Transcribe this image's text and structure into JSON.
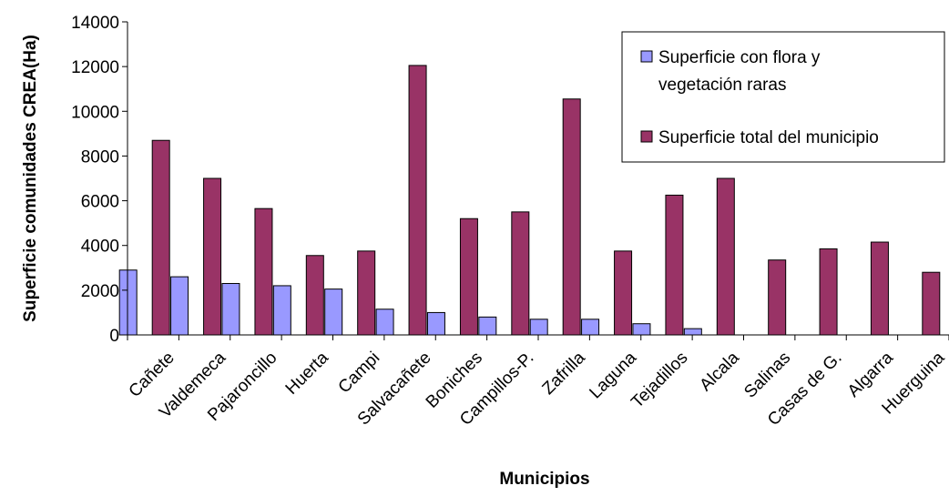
{
  "chart_data": {
    "type": "bar",
    "categories": [
      "Cañete",
      "Valdemeca",
      "Pajaroncillo",
      "Huerta",
      "Campi",
      "Salvacañete",
      "Boniches",
      "Campillos-P.",
      "Zafrilla",
      "Laguna",
      "Tejadillos",
      "Alcala",
      "Salinas",
      "Casas de G.",
      "Algarra",
      "Huerguina"
    ],
    "series": [
      {
        "name": "Superficie con flora y vegetación raras",
        "color": "#9999ff",
        "values": [
          2900,
          2600,
          2300,
          2200,
          2050,
          1150,
          1000,
          800,
          700,
          700,
          500,
          280,
          0,
          0,
          0,
          0
        ]
      },
      {
        "name": "Superficie total del municipio",
        "color": "#993366",
        "values": [
          8700,
          7000,
          5650,
          3550,
          3750,
          12050,
          5200,
          5500,
          10550,
          3750,
          6250,
          7000,
          3350,
          3850,
          4150,
          2800
        ]
      }
    ],
    "legend_lines": [
      [
        "Superficie con flora y",
        "vegetación raras"
      ],
      [
        "Superficie total del municipio"
      ]
    ],
    "xlabel": "Municipios",
    "ylabel": "Superficie comunidades CREA(Ha)",
    "ylim": [
      0,
      14000
    ],
    "yticks": [
      0,
      2000,
      4000,
      6000,
      8000,
      10000,
      12000,
      14000
    ],
    "legend_position": "top-right",
    "grid": false
  }
}
